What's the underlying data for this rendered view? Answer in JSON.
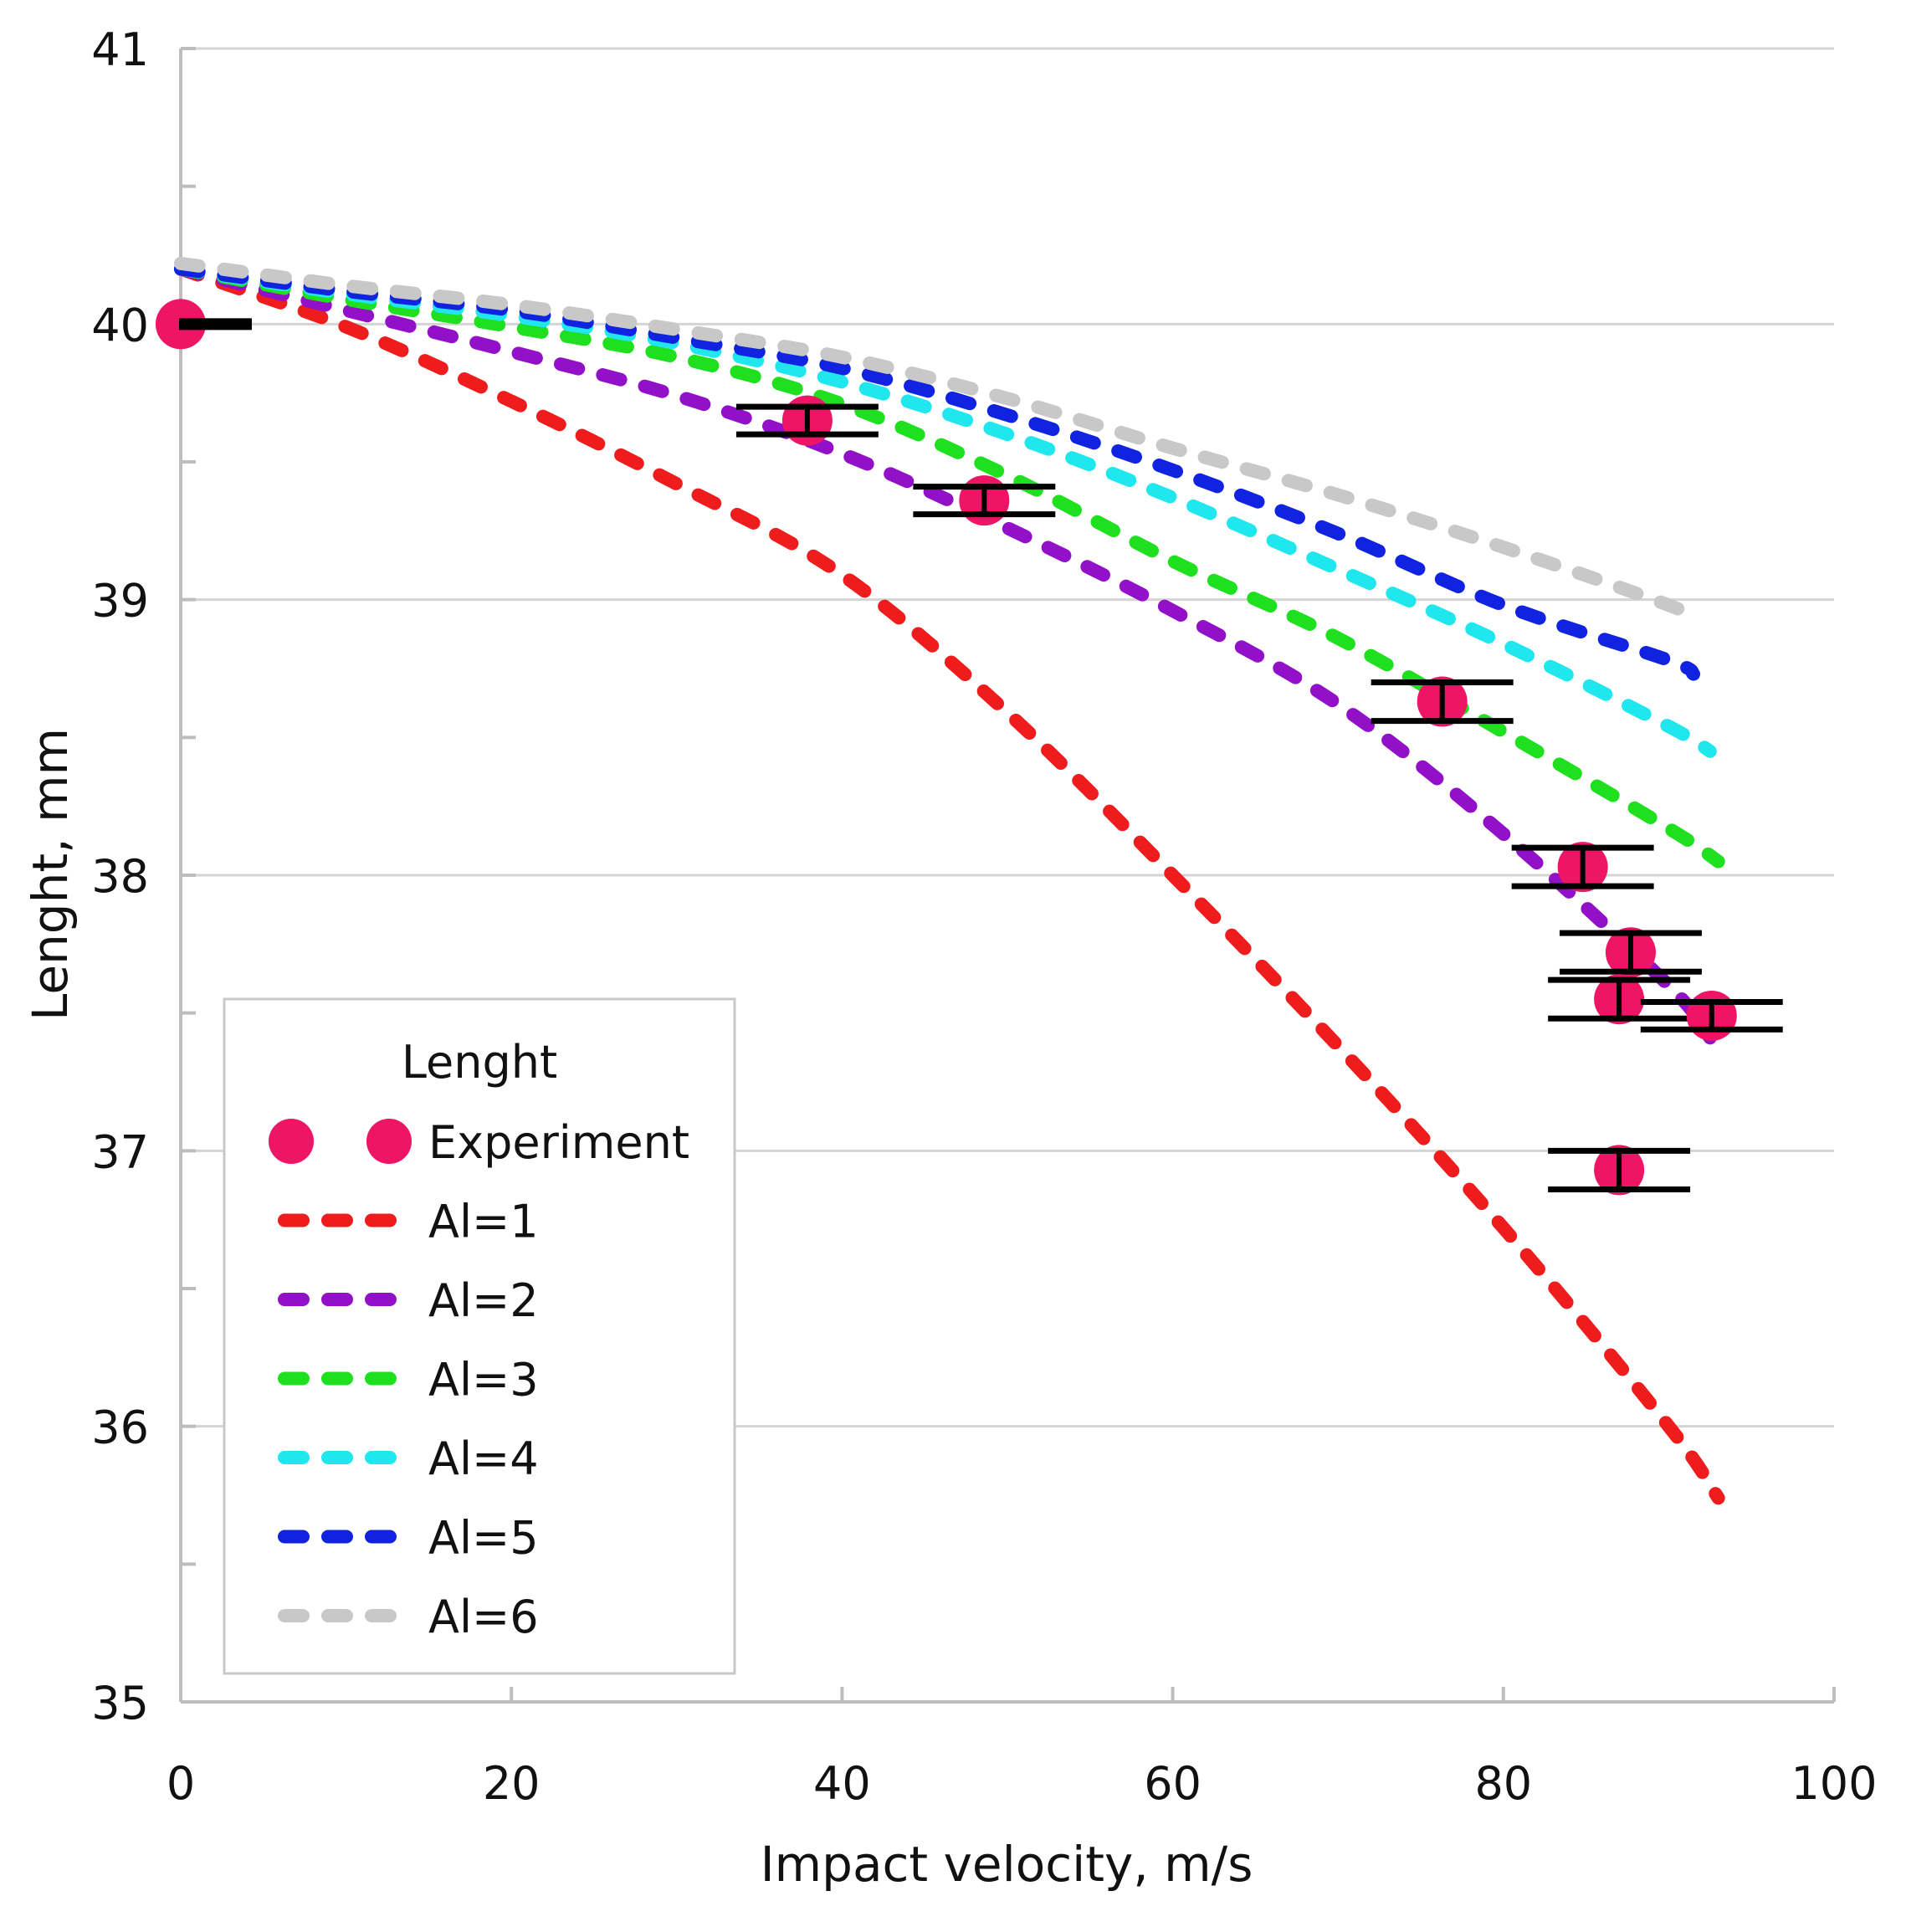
{
  "chart_data": {
    "type": "scatter",
    "title": "",
    "xlabel": "Impact velocity, m/s",
    "ylabel": "Lenght, mm",
    "xlim": [
      0,
      100
    ],
    "ylim": [
      35,
      41
    ],
    "xticks": [
      0,
      20,
      40,
      60,
      80,
      100
    ],
    "xtick_labels": [
      "0",
      "20",
      "40",
      "60",
      "80",
      "100"
    ],
    "yticks": [
      35,
      36,
      37,
      38,
      39,
      40,
      41
    ],
    "ytick_labels": [
      "35",
      "36",
      "37",
      "38",
      "39",
      "40",
      "41"
    ],
    "grid": "horizontal",
    "legend": {
      "title": "Lenght",
      "placement": "bottom-left",
      "entries": [
        "Experiment",
        "Al=1",
        "Al=2",
        "Al=3",
        "Al=4",
        "Al=5",
        "Al=6"
      ]
    },
    "experiment": {
      "name": "Experiment",
      "color": "#ee1466",
      "points": [
        {
          "x": 0,
          "y": 40.0,
          "err_half_width": 4.3,
          "err_y": 0.0
        },
        {
          "x": 37.9,
          "y": 39.65,
          "err_half_width": 4.3,
          "err_y": 0.05
        },
        {
          "x": 48.6,
          "y": 39.36,
          "err_half_width": 4.3,
          "err_y": 0.05
        },
        {
          "x": 76.3,
          "y": 38.63,
          "err_half_width": 4.3,
          "err_y": 0.07
        },
        {
          "x": 84.8,
          "y": 38.03,
          "err_half_width": 4.3,
          "err_y": 0.07
        },
        {
          "x": 87.7,
          "y": 37.72,
          "err_half_width": 4.3,
          "err_y": 0.07
        },
        {
          "x": 87.0,
          "y": 37.55,
          "err_half_width": 4.3,
          "err_y": 0.07
        },
        {
          "x": 92.6,
          "y": 37.49,
          "err_half_width": 4.3,
          "err_y": 0.05
        },
        {
          "x": 87.0,
          "y": 36.93,
          "err_half_width": 4.3,
          "err_y": 0.07
        }
      ]
    },
    "series": [
      {
        "name": "Al=1",
        "color": "#ee1c1c",
        "x": [
          0,
          10,
          20,
          30,
          40,
          50,
          60,
          70,
          80,
          90,
          93
        ],
        "values": [
          40.2,
          39.99,
          39.72,
          39.42,
          39.09,
          38.59,
          38.0,
          37.38,
          36.72,
          36.0,
          35.74
        ]
      },
      {
        "name": "Al=2",
        "color": "#9211c8",
        "x": [
          0,
          10,
          20,
          30,
          40,
          50,
          60,
          70,
          80,
          90,
          92.5
        ],
        "values": [
          40.2,
          40.05,
          39.9,
          39.74,
          39.53,
          39.26,
          38.96,
          38.62,
          38.15,
          37.6,
          37.41
        ]
      },
      {
        "name": "Al=3",
        "color": "#1fe01f",
        "x": [
          0,
          10,
          20,
          30,
          40,
          50,
          60,
          70,
          80,
          90,
          93
        ],
        "values": [
          40.2,
          40.09,
          39.99,
          39.88,
          39.71,
          39.45,
          39.14,
          38.86,
          38.52,
          38.17,
          38.05
        ]
      },
      {
        "name": "Al=4",
        "color": "#20e6ee",
        "x": [
          0,
          10,
          20,
          30,
          40,
          50,
          60,
          70,
          80,
          90,
          92.5
        ],
        "values": [
          40.2,
          40.11,
          40.03,
          39.93,
          39.79,
          39.6,
          39.37,
          39.11,
          38.84,
          38.54,
          38.45
        ]
      },
      {
        "name": "Al=5",
        "color": "#1023e0",
        "x": [
          0,
          10,
          20,
          30,
          40,
          50,
          60,
          70,
          80,
          90,
          91.5
        ],
        "values": [
          40.2,
          40.12,
          40.05,
          39.95,
          39.84,
          39.67,
          39.47,
          39.24,
          38.98,
          38.78,
          38.73
        ]
      },
      {
        "name": "Al=6",
        "color": "#c8c8c8",
        "x": [
          0,
          10,
          20,
          30,
          40,
          50,
          60,
          70,
          80,
          90,
          91.5
        ],
        "values": [
          40.22,
          40.14,
          40.07,
          39.98,
          39.88,
          39.73,
          39.55,
          39.38,
          39.19,
          38.98,
          38.93
        ]
      }
    ]
  }
}
